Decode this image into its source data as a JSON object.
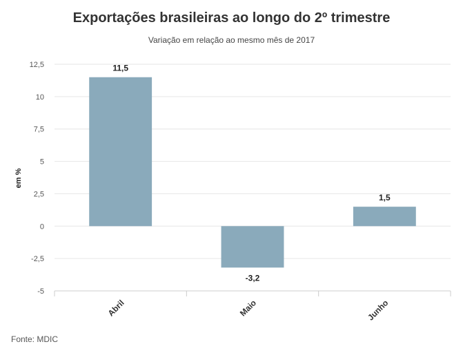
{
  "chart_data": {
    "type": "bar",
    "title": "Exportações brasileiras ao longo do 2º trimestre",
    "subtitle": "Variação em relação ao mesmo mês de 2017",
    "ylabel": "em %",
    "xlabel": "",
    "categories": [
      "Abril",
      "Maio",
      "Junho"
    ],
    "values": [
      11.5,
      -3.2,
      1.5
    ],
    "value_labels": [
      "11,5",
      "-3,2",
      "1,5"
    ],
    "ylim": [
      -5,
      12.5
    ],
    "yticks": [
      12.5,
      10,
      7.5,
      5,
      2.5,
      0,
      -2.5,
      -5
    ],
    "ytick_labels": [
      "12,5",
      "10",
      "7,5",
      "5",
      "2,5",
      "0",
      "-2,5",
      "-5"
    ],
    "grid": true,
    "bar_color": "#8aaabb",
    "source": "Fonte: MDIC"
  }
}
